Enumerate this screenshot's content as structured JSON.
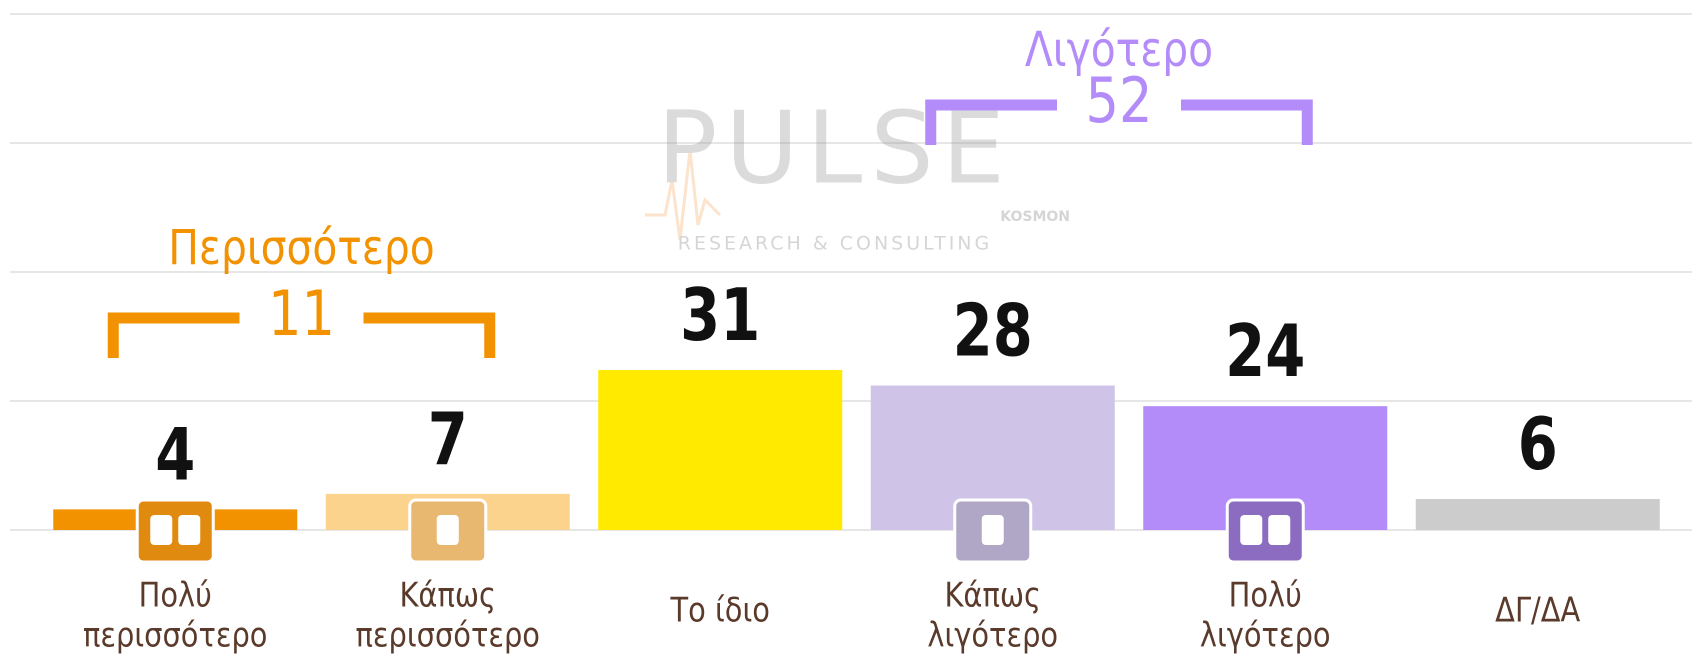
{
  "chart_data": {
    "type": "bar",
    "categories": [
      [
        "Πολύ",
        "περισσότερο"
      ],
      [
        "Κάπως",
        "περισσότερο"
      ],
      [
        "Το ίδιο"
      ],
      [
        "Κάπως",
        "λιγότερο"
      ],
      [
        "Πολύ",
        "λιγότερο"
      ],
      [
        "ΔΓ/ΔΑ"
      ]
    ],
    "values": [
      4,
      7,
      31,
      28,
      24,
      6
    ],
    "colors": [
      "#f39200",
      "#fbd38d",
      "#ffea00",
      "#cfc3e8",
      "#b38cfa",
      "#cccccc"
    ],
    "ylim": [
      0,
      100
    ],
    "yticks": [
      0,
      25,
      50,
      75,
      100
    ],
    "grid": true,
    "groups": [
      {
        "label": "Περισσότερο",
        "value": 11,
        "color": "#f39200"
      },
      {
        "label": "Λιγότερο",
        "value": 52,
        "color": "#b38cfa"
      }
    ],
    "watermark": {
      "brand": "PULSE",
      "sub": "KOSMON",
      "tagline": "RESEARCH & CONSULTING"
    }
  }
}
